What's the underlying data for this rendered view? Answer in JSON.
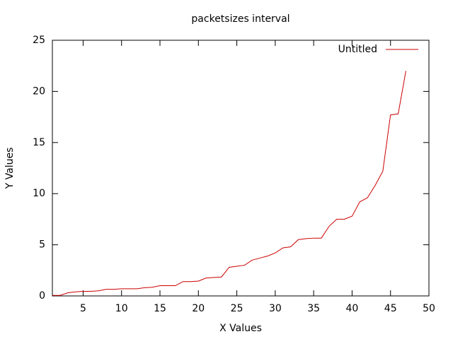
{
  "chart_data": {
    "type": "line",
    "title": "packetsizes interval",
    "x_label": "X Values",
    "y_label": "Y Values",
    "x": [
      1,
      2,
      3,
      4,
      5,
      6,
      7,
      8,
      9,
      10,
      11,
      12,
      13,
      14,
      15,
      16,
      17,
      18,
      19,
      20,
      21,
      22,
      23,
      24,
      25,
      26,
      27,
      28,
      29,
      30,
      31,
      32,
      33,
      34,
      35,
      36,
      37,
      38,
      39,
      40,
      41,
      42,
      43,
      44,
      45,
      46,
      47
    ],
    "series": [
      {
        "name": "Untitled",
        "color": "#cc0000",
        "values": [
          0.05,
          0.05,
          0.3,
          0.4,
          0.45,
          0.45,
          0.5,
          0.65,
          0.65,
          0.7,
          0.7,
          0.7,
          0.8,
          0.85,
          1.0,
          1.0,
          1.0,
          1.4,
          1.4,
          1.45,
          1.75,
          1.8,
          1.85,
          2.8,
          2.9,
          3.0,
          3.5,
          3.7,
          3.9,
          4.2,
          4.7,
          4.8,
          5.5,
          5.6,
          5.65,
          5.65,
          6.8,
          7.5,
          7.5,
          7.8,
          9.2,
          9.6,
          10.8,
          12.2,
          17.7,
          17.8,
          22.0
        ]
      }
    ],
    "xlim": [
      1,
      50
    ],
    "xticks": [
      5,
      10,
      15,
      20,
      25,
      30,
      35,
      40,
      45,
      50
    ],
    "ylim": [
      0,
      25
    ],
    "yticks": [
      0,
      5,
      10,
      15,
      20,
      25
    ],
    "legend": "top-right",
    "grid": false
  }
}
